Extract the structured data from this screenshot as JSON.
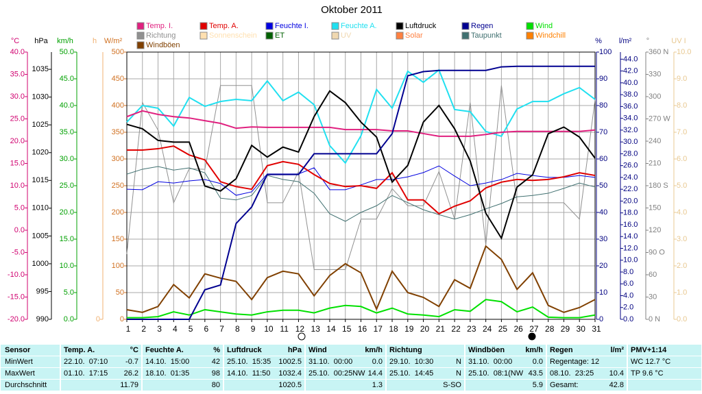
{
  "chart_data": {
    "type": "line",
    "title": "Oktober 2011",
    "x": [
      1,
      2,
      3,
      4,
      5,
      6,
      7,
      8,
      9,
      10,
      11,
      12,
      13,
      14,
      15,
      16,
      17,
      18,
      19,
      20,
      21,
      22,
      23,
      24,
      25,
      26,
      27,
      28,
      29,
      30,
      31
    ],
    "xlim": [
      1,
      31
    ],
    "xticks": [
      1,
      2,
      3,
      4,
      5,
      6,
      7,
      8,
      9,
      10,
      11,
      12,
      13,
      14,
      15,
      16,
      17,
      18,
      19,
      20,
      21,
      22,
      23,
      24,
      25,
      26,
      27,
      28,
      29,
      30,
      31
    ],
    "grid": true,
    "axes": [
      {
        "unit": "°C",
        "color": "#d0006f",
        "lim": [
          -20,
          40
        ],
        "ticks": [
          {
            "value": -20,
            "label": "-20.0"
          },
          {
            "value": -15,
            "label": "-15.0"
          },
          {
            "value": -10,
            "label": "-10.0"
          },
          {
            "value": -5,
            "label": "-5.0"
          },
          {
            "value": 0,
            "label": "0.0"
          },
          {
            "value": 5,
            "label": "5.0"
          },
          {
            "value": 10,
            "label": "10.0"
          },
          {
            "value": 15,
            "label": "15.0"
          },
          {
            "value": 20,
            "label": "20.0"
          },
          {
            "value": 25,
            "label": "25.0"
          },
          {
            "value": 30,
            "label": "30.0"
          },
          {
            "value": 35,
            "label": "35.0"
          },
          {
            "value": 40,
            "label": "40.0"
          }
        ]
      },
      {
        "unit": "hPa",
        "color": "#000000",
        "lim": [
          990,
          1038.1
        ],
        "ticks": [
          990,
          995,
          1000,
          1005,
          1010,
          1015,
          1020,
          1025,
          1030,
          1035
        ]
      },
      {
        "unit": "km/h",
        "color": "#00a000",
        "lim": [
          0,
          50
        ],
        "ticks": [
          {
            "value": 0,
            "label": "0.0"
          },
          {
            "value": 5,
            "label": "5.0"
          },
          {
            "value": 10,
            "label": "10.0"
          },
          {
            "value": 15,
            "label": "15.0"
          },
          {
            "value": 20,
            "label": "20.0"
          },
          {
            "value": 25,
            "label": "25.0"
          },
          {
            "value": 30,
            "label": "30.0"
          },
          {
            "value": 35,
            "label": "35.0"
          },
          {
            "value": 40,
            "label": "40.0"
          },
          {
            "value": 45,
            "label": "45.0"
          },
          {
            "value": 50,
            "label": "50.0"
          }
        ]
      },
      {
        "unit": "h",
        "color": "#f0b070",
        "ticks": [
          0
        ]
      },
      {
        "unit": "W/m²",
        "color": "#d07020",
        "lim": [
          0,
          500
        ],
        "ticks": [
          0,
          50,
          100,
          150,
          200,
          250,
          300,
          350,
          400,
          450,
          500
        ]
      },
      {
        "unit": "%",
        "color": "#000080",
        "lim": [
          0,
          100
        ],
        "ticks": [
          0,
          10,
          20,
          30,
          40,
          50,
          60,
          70,
          80,
          90,
          100
        ]
      },
      {
        "unit": "l/m²",
        "color": "#000080",
        "lim": [
          0,
          45.2
        ],
        "ticks": [
          {
            "value": 0,
            "label": "0.0"
          },
          {
            "value": 2,
            "label": "2.0"
          },
          {
            "value": 4,
            "label": "4.0"
          },
          {
            "value": 6,
            "label": "6.0"
          },
          {
            "value": 8,
            "label": "8.0"
          },
          {
            "value": 10,
            "label": "10.0"
          },
          {
            "value": 12,
            "label": "12.0"
          },
          {
            "value": 14,
            "label": "14.0"
          },
          {
            "value": 16,
            "label": "16.0"
          },
          {
            "value": 18,
            "label": "18.0"
          },
          {
            "value": 20,
            "label": "20.0"
          },
          {
            "value": 22,
            "label": "22.0"
          },
          {
            "value": 24,
            "label": "24.0"
          },
          {
            "value": 26,
            "label": "26.0"
          },
          {
            "value": 28,
            "label": "28.0"
          },
          {
            "value": 30,
            "label": "30.0"
          },
          {
            "value": 32,
            "label": "32.0"
          },
          {
            "value": 34,
            "label": "34.0"
          },
          {
            "value": 36,
            "label": "36.0"
          },
          {
            "value": 38,
            "label": "38.0"
          },
          {
            "value": 40,
            "label": "40.0"
          },
          {
            "value": 42,
            "label": "42.0"
          },
          {
            "value": 44,
            "label": "44.0"
          }
        ]
      },
      {
        "unit": "°",
        "color": "#808080",
        "lim": [
          0,
          360
        ],
        "ticks": [
          {
            "value": 0,
            "label": "0 N"
          },
          30,
          60,
          {
            "value": 90,
            "label": "90 O"
          },
          120,
          150,
          {
            "value": 180,
            "label": "180 S"
          },
          210,
          240,
          {
            "value": 270,
            "label": "270 W"
          },
          300,
          330,
          {
            "value": 360,
            "label": "360 N"
          }
        ]
      },
      {
        "unit": "UV I",
        "color": "#e8c890",
        "lim": [
          0,
          10
        ],
        "ticks": [
          {
            "value": 0,
            "label": "0.0"
          },
          {
            "value": 1,
            "label": "1.0"
          },
          {
            "value": 2,
            "label": "2.0"
          },
          {
            "value": 3,
            "label": "3.0"
          },
          {
            "value": 4,
            "label": "4.0"
          },
          {
            "value": 5,
            "label": "5.0"
          },
          {
            "value": 6,
            "label": "6.0"
          },
          {
            "value": 7,
            "label": "7.0"
          },
          {
            "value": 8,
            "label": "8.0"
          },
          {
            "value": 9,
            "label": "9.0"
          },
          {
            "value": 10,
            "label": "10.0"
          }
        ]
      }
    ],
    "series": [
      {
        "name": "Temp. I.",
        "color": "#e0207f",
        "axis": 0,
        "width": 2,
        "values": [
          25.5,
          26.8,
          26.0,
          25.5,
          25.2,
          24.6,
          24.0,
          22.9,
          23.2,
          23.1,
          23.1,
          23.1,
          23.1,
          23.1,
          22.6,
          22.6,
          22.6,
          22.3,
          22.3,
          21.7,
          21.1,
          21.1,
          21.1,
          21.5,
          22.0,
          22.2,
          22.2,
          22.2,
          22.2,
          22.2,
          22.5
        ]
      },
      {
        "name": "Temp. A.",
        "color": "#e00000",
        "axis": 0,
        "width": 2,
        "values": [
          18.0,
          18.0,
          18.3,
          18.9,
          16.9,
          15.8,
          10.9,
          9.8,
          9.2,
          14.5,
          15.4,
          14.8,
          12.5,
          10.5,
          9.8,
          10.0,
          9.4,
          12.9,
          6.8,
          6.8,
          3.7,
          5.4,
          6.6,
          9.5,
          10.8,
          11.4,
          11.2,
          11.4,
          12.0,
          12.9,
          12.3
        ]
      },
      {
        "name": "Feuchte I.",
        "color": "#0000e0",
        "axis": 5,
        "width": 1,
        "values": [
          48.7,
          48.5,
          51.5,
          51.0,
          51.8,
          52.3,
          50.8,
          46.4,
          47.7,
          54.4,
          54.4,
          54.4,
          56.7,
          48.5,
          48.5,
          50.3,
          52.3,
          52.3,
          53.3,
          54.9,
          57.4,
          53.6,
          50.0,
          51.0,
          52.3,
          54.6,
          53.8,
          53.1,
          53.1,
          53.8,
          53.1
        ]
      },
      {
        "name": "Feuchte A.",
        "color": "#20e0f0",
        "axis": 5,
        "width": 2,
        "values": [
          73.8,
          80.0,
          79.0,
          72.3,
          83.0,
          79.7,
          81.5,
          82.3,
          81.8,
          89.2,
          81.8,
          85.0,
          80.3,
          65.0,
          58.5,
          68.7,
          86.0,
          79.0,
          92.8,
          88.7,
          93.3,
          78.5,
          77.7,
          70.3,
          68.5,
          78.7,
          81.5,
          81.5,
          84.4,
          86.7,
          82.3
        ]
      },
      {
        "name": "Luftdruck",
        "color": "#000000",
        "axis": 1,
        "width": 2,
        "values": [
          1025.1,
          1024.3,
          1022.2,
          1021.9,
          1021.9,
          1014.0,
          1013.1,
          1015.3,
          1021.3,
          1019.2,
          1021.0,
          1020.1,
          1026.5,
          1031.1,
          1029.0,
          1025.5,
          1022.8,
          1014.7,
          1017.7,
          1025.5,
          1028.5,
          1024.3,
          1018.5,
          1009.1,
          1004.6,
          1013.8,
          1016.0,
          1023.4,
          1024.6,
          1022.8,
          1019.0
        ]
      },
      {
        "name": "Regen",
        "color": "#000090",
        "axis": 6,
        "width": 2,
        "values": [
          0,
          0,
          0,
          0,
          0,
          5.0,
          5.8,
          16.2,
          19.0,
          24.5,
          24.5,
          24.5,
          28.0,
          28.0,
          28.0,
          28.0,
          28.0,
          31.4,
          41.2,
          41.9,
          42.1,
          42.1,
          42.1,
          42.1,
          42.7,
          42.8,
          42.8,
          42.8,
          42.8,
          42.8,
          42.8
        ]
      },
      {
        "name": "Wind",
        "color": "#00e000",
        "axis": 2,
        "width": 2,
        "values": [
          0.3,
          0.3,
          0.5,
          1.4,
          0.8,
          1.8,
          1.4,
          1.0,
          0.8,
          1.4,
          1.7,
          1.7,
          1.2,
          2.1,
          2.6,
          2.4,
          1.2,
          2.1,
          1.0,
          0.8,
          0.5,
          1.8,
          1.5,
          3.7,
          3.3,
          1.4,
          2.3,
          0.4,
          0.3,
          0.3,
          0.8
        ]
      },
      {
        "name": "Richtung",
        "color": "#909090",
        "axis": 7,
        "width": 1,
        "values": [
          88,
          292,
          255,
          157,
          203,
          202,
          315,
          315,
          315,
          157,
          157,
          199,
          67,
          67,
          67,
          135,
          135,
          176,
          153,
          153,
          199,
          135,
          292,
          100,
          315,
          157,
          157,
          157,
          157,
          135,
          296
        ]
      },
      {
        "name": "Sonnenschein",
        "color": "#ffe0b0"
      },
      {
        "name": "ET",
        "color": "#006000"
      },
      {
        "name": "UV",
        "color": "#f0d8b0"
      },
      {
        "name": "Solar",
        "color": "#ff8040"
      },
      {
        "name": "Taupunkt",
        "color": "#407070",
        "axis": 0,
        "width": 1,
        "values": [
          12.6,
          13.7,
          14.3,
          13.5,
          14.0,
          12.9,
          7.2,
          6.8,
          7.8,
          12.3,
          11.4,
          10.9,
          8.3,
          3.7,
          2.0,
          4.0,
          5.5,
          7.8,
          6.2,
          4.6,
          3.5,
          2.5,
          3.5,
          4.8,
          6.0,
          7.5,
          7.8,
          8.3,
          9.4,
          10.6,
          9.7
        ]
      },
      {
        "name": "Windchill",
        "color": "#ff8000"
      },
      {
        "name": "Windböen",
        "color": "#804000",
        "axis": 2,
        "width": 2,
        "values": [
          1.8,
          1.3,
          2.4,
          6.5,
          4.0,
          8.5,
          7.7,
          7.1,
          3.7,
          7.8,
          9.0,
          8.5,
          4.4,
          8.2,
          10.4,
          8.7,
          1.9,
          9.0,
          5.0,
          4.1,
          2.4,
          7.4,
          5.8,
          13.7,
          11.2,
          5.6,
          8.7,
          2.6,
          1.3,
          2.2,
          3.7
        ]
      }
    ]
  },
  "table": {
    "header": [
      [
        "Sensor"
      ],
      [
        "Temp. A.",
        "°C"
      ],
      [
        "Feuchte A.",
        "%"
      ],
      [
        "Luftdruck",
        "hPa"
      ],
      [
        "Wind",
        "km/h"
      ],
      [
        "Richtung"
      ],
      [
        "Windböen",
        "km/h"
      ],
      [
        "Regen",
        "l/m²"
      ],
      [
        "PMV+1:14"
      ]
    ],
    "rows": [
      [
        [
          "MinWert"
        ],
        [
          "22.10.  07:10",
          "-0.7"
        ],
        [
          "14.10.  15:00",
          "42"
        ],
        [
          "25.10.  15:35",
          "1002.5"
        ],
        [
          "31.10.  00:00",
          "0.0"
        ],
        [
          "29.10.  10:30",
          "N"
        ],
        [
          "31.10.  00:00",
          "0.0"
        ],
        [
          "Regentage: 12"
        ],
        [
          "WC 12.7 °C"
        ]
      ],
      [
        [
          "MaxWert"
        ],
        [
          "01.10.  17:15",
          "26.2"
        ],
        [
          "18.10.  01:35",
          "98"
        ],
        [
          "14.10.  11:50",
          "1032.4"
        ],
        [
          "25.10.  00:25NW",
          "14.4"
        ],
        [
          "25.10.  14:45",
          "N"
        ],
        [
          "25.10.  08:1(NW",
          "43.5"
        ],
        [
          "08.10.  23:25",
          "10.4"
        ],
        [
          "TP 9.6 °C"
        ]
      ],
      [
        [
          "Durchschnitt"
        ],
        [
          "",
          "11.79"
        ],
        [
          "",
          "80"
        ],
        [
          "",
          "1020.5"
        ],
        [
          "",
          "1.3"
        ],
        [
          "",
          "S-SO"
        ],
        [
          "",
          "5.9"
        ],
        [
          "Gesamt:",
          "42.8"
        ],
        [
          ""
        ]
      ]
    ]
  }
}
